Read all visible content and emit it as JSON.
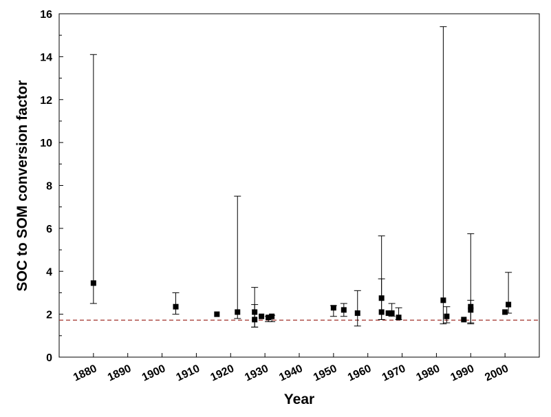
{
  "chart_data": {
    "type": "scatter",
    "title": "",
    "xlabel": "Year",
    "ylabel": "SOC to SOM conversion factor",
    "xlim": [
      1870,
      2010
    ],
    "ylim": [
      0,
      16
    ],
    "x_ticks": [
      "1880",
      "1890",
      "1900",
      "1910",
      "1920",
      "1930",
      "1940",
      "1950",
      "1960",
      "1970",
      "1980",
      "1990",
      "2000"
    ],
    "y_ticks": [
      "0",
      "2",
      "4",
      "6",
      "8",
      "10",
      "12",
      "14",
      "16"
    ],
    "grid": false,
    "legend": "none",
    "reference_line": {
      "y": 1.724,
      "style": "dashed",
      "color": "#a0302a"
    },
    "marker_color": "#000000",
    "points": [
      {
        "x": 1880,
        "y": 3.45,
        "lo": 2.5,
        "hi": 14.1
      },
      {
        "x": 1904,
        "y": 2.35,
        "lo": 2.0,
        "hi": 3.0
      },
      {
        "x": 1916,
        "y": 2.0
      },
      {
        "x": 1922,
        "y": 2.1,
        "lo": 1.8,
        "hi": 7.5
      },
      {
        "x": 1927,
        "y": 2.1,
        "lo": 1.4,
        "hi": 3.25
      },
      {
        "x": 1927,
        "y": 1.75,
        "lo": 1.4,
        "hi": 2.45
      },
      {
        "x": 1929,
        "y": 1.9
      },
      {
        "x": 1931,
        "y": 1.85,
        "lo": 1.65,
        "hi": 1.9
      },
      {
        "x": 1932,
        "y": 1.9,
        "lo": 1.65,
        "hi": 1.95
      },
      {
        "x": 1950,
        "y": 2.3,
        "lo": 1.9,
        "hi": 2.4
      },
      {
        "x": 1953,
        "y": 2.2,
        "lo": 1.9,
        "hi": 2.5
      },
      {
        "x": 1957,
        "y": 2.05,
        "lo": 1.45,
        "hi": 3.1
      },
      {
        "x": 1964,
        "y": 2.75,
        "lo": 1.75,
        "hi": 5.65
      },
      {
        "x": 1964,
        "y": 2.1,
        "lo": 1.75,
        "hi": 3.65
      },
      {
        "x": 1966,
        "y": 2.05
      },
      {
        "x": 1967,
        "y": 2.05,
        "lo": 1.9,
        "hi": 2.5
      },
      {
        "x": 1969,
        "y": 1.85,
        "lo": 1.75,
        "hi": 2.3
      },
      {
        "x": 1982,
        "y": 2.65,
        "lo": 1.55,
        "hi": 15.4
      },
      {
        "x": 1983,
        "y": 1.9,
        "lo": 1.6,
        "hi": 2.35
      },
      {
        "x": 1988,
        "y": 1.75
      },
      {
        "x": 1990,
        "y": 2.35,
        "lo": 1.55,
        "hi": 5.75
      },
      {
        "x": 1990,
        "y": 2.2,
        "lo": 1.6,
        "hi": 2.65
      },
      {
        "x": 2000,
        "y": 2.1
      },
      {
        "x": 2001,
        "y": 2.45,
        "lo": 2.05,
        "hi": 3.95
      }
    ]
  }
}
